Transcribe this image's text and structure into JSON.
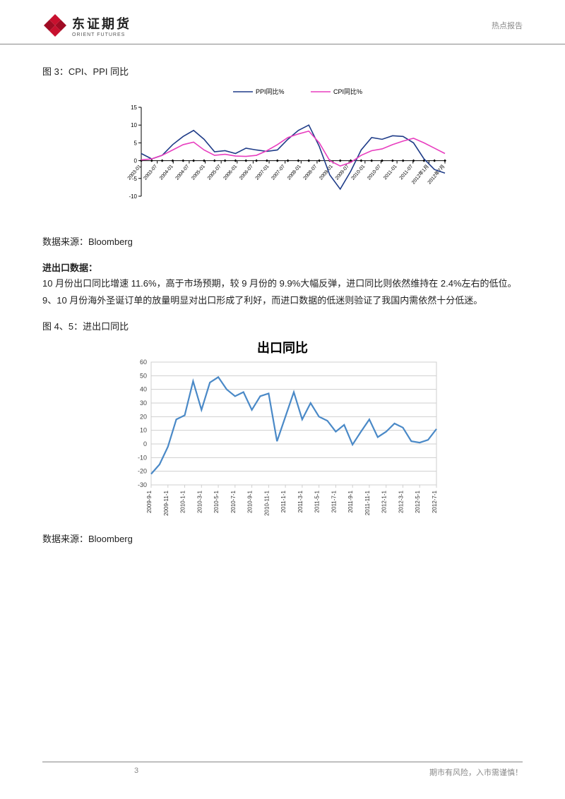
{
  "header": {
    "brand_cn": "东证期货",
    "brand_en": "ORIENT FUTURES",
    "right_label": "热点报告",
    "logo_color": "#c8102e"
  },
  "chart1": {
    "type": "line",
    "title": "图 3：CPI、PPI 同比",
    "source": "数据来源：Bloomberg",
    "legend": [
      "PPI同比%",
      "CPI同比%"
    ],
    "legend_colors": [
      "#1f3c88",
      "#e83ebf"
    ],
    "x_labels": [
      "2003-01",
      "2003-07",
      "2004-01",
      "2004-07",
      "2005-01",
      "2005-07",
      "2006-01",
      "2006-07",
      "2007-01",
      "2007-07",
      "2008-01",
      "2008-07",
      "2009-01",
      "2009-07",
      "2010-01",
      "2010-07",
      "2011-01",
      "2011-07",
      "2012年1月",
      "2012年7月"
    ],
    "ylim": [
      -10,
      15
    ],
    "yticks": [
      -10,
      -5,
      0,
      5,
      10,
      15
    ],
    "background_color": "#ffffff",
    "axis_color": "#000000",
    "axis_fontsize": 8,
    "tick_fontsize": 7,
    "legend_fontsize": 9,
    "line_width": 1.6,
    "series": {
      "ppi": [
        2.0,
        0.5,
        1.5,
        4.5,
        6.8,
        8.5,
        6.0,
        2.5,
        2.8,
        2.0,
        3.5,
        3.0,
        2.6,
        3.0,
        6.0,
        8.5,
        10.0,
        4.0,
        -4.0,
        -8.0,
        -3.0,
        3.0,
        6.5,
        6.0,
        7.0,
        6.8,
        5.0,
        0.5,
        -2.5,
        -3.5
      ],
      "cpi": [
        0.2,
        0.5,
        1.5,
        3.0,
        4.5,
        5.2,
        3.0,
        1.5,
        1.8,
        1.3,
        1.2,
        1.5,
        2.8,
        4.5,
        6.5,
        7.5,
        8.3,
        5.0,
        0.0,
        -1.5,
        -0.5,
        1.5,
        2.8,
        3.3,
        4.5,
        5.5,
        6.3,
        5.0,
        3.5,
        2.0
      ]
    }
  },
  "section_export": {
    "heading": "进出口数据：",
    "p1": "10 月份出口同比增速 11.6%，高于市场预期，较 9 月份的 9.9%大幅反弹，进口同比则依然维持在 2.4%左右的低位。",
    "p2": "9、10 月份海外圣诞订单的放量明显对出口形成了利好，而进口数据的低迷则验证了我国内需依然十分低迷。"
  },
  "chart2": {
    "type": "line",
    "fig_label": "图 4、5：进出口同比",
    "title": "出口同比",
    "source": "数据来源：Bloomberg",
    "x_labels": [
      "2009-9-1",
      "2009-11-1",
      "2010-1-1",
      "2010-3-1",
      "2010-5-1",
      "2010-7-1",
      "2010-9-1",
      "2010-11-1",
      "2011-1-1",
      "2011-3-1",
      "2011-5-1",
      "2011-7-1",
      "2011-9-1",
      "2011-11-1",
      "2012-1-1",
      "2012-3-1",
      "2012-5-1",
      "2012-7-1"
    ],
    "ylim": [
      -30,
      60
    ],
    "yticks": [
      -30,
      -20,
      -10,
      0,
      10,
      20,
      30,
      40,
      50,
      60
    ],
    "series_color": "#4a89c7",
    "background_color": "#ffffff",
    "grid_color": "#cfcfcf",
    "axis_fontsize": 9,
    "title_fontsize": 18,
    "line_width": 2.2,
    "values": [
      -22,
      -15,
      -2,
      18,
      21,
      46,
      25,
      45,
      49,
      40,
      35,
      38,
      25,
      35,
      37,
      2,
      20,
      38,
      18,
      30,
      20,
      17,
      9,
      14,
      -0.5,
      9,
      18,
      5,
      9,
      15,
      12,
      2,
      1,
      3,
      11
    ]
  },
  "footer": {
    "page": "3",
    "disclaimer": "期市有风险，入市需谨慎！"
  }
}
